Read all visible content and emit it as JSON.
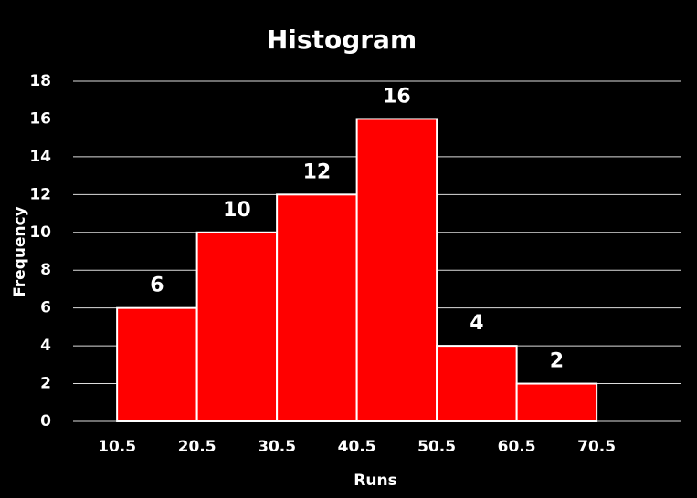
{
  "chart_data": {
    "type": "histogram",
    "title": "Histogram",
    "x_label": "Runs",
    "y_label": "Frequency",
    "bins": [
      10.5,
      20.5,
      30.5,
      40.5,
      50.5,
      60.5,
      70.5
    ],
    "values": [
      6,
      10,
      12,
      16,
      4,
      2
    ],
    "color": "#ff0000",
    "xlim": [
      5,
      81
    ],
    "xticks": [
      10.5,
      20.5,
      30.5,
      40.5,
      50.5,
      60.5,
      70.5
    ],
    "ylim": [
      0,
      18
    ],
    "yticks": [
      0,
      2,
      4,
      6,
      8,
      10,
      12,
      14,
      16,
      18
    ],
    "grid": true
  }
}
